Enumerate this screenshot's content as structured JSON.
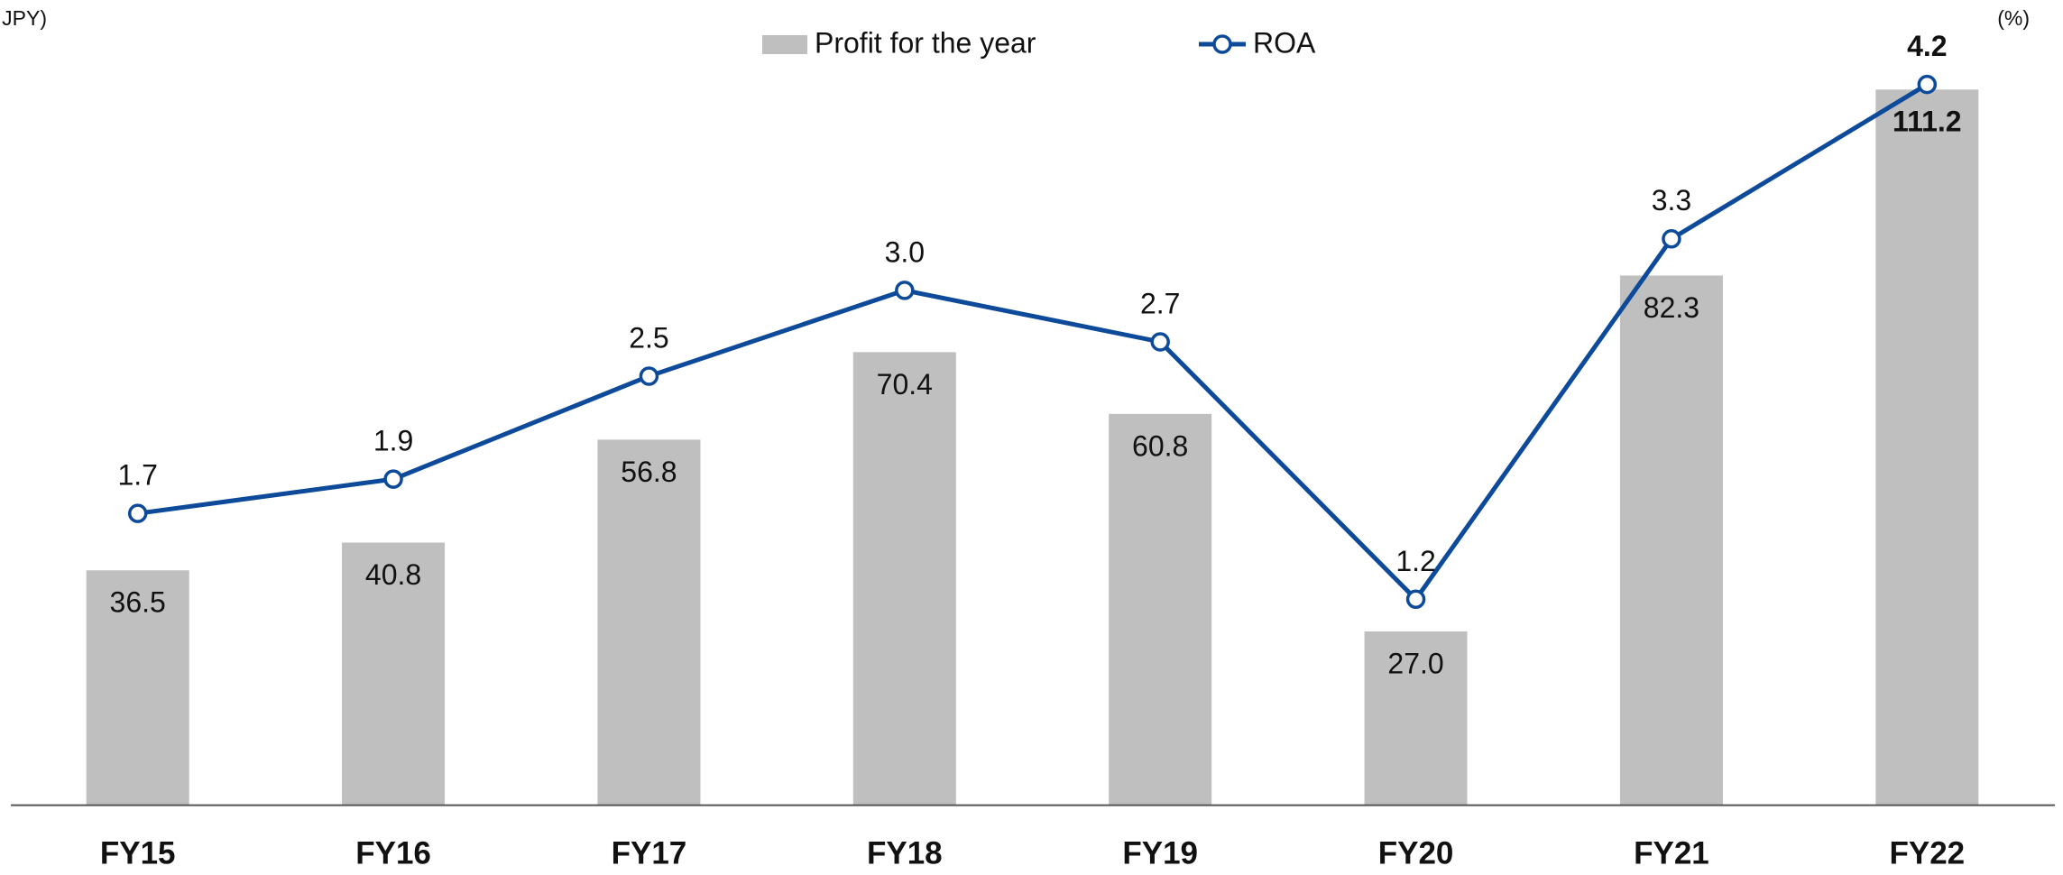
{
  "chart_data": {
    "type": "bar_line",
    "y_label": "(Billion JPY)",
    "y2_label": "(%)",
    "categories": [
      "FY15",
      "FY16",
      "FY17",
      "FY18",
      "FY19",
      "FY20",
      "FY21",
      "FY22"
    ],
    "series": [
      {
        "name": "Profit for the year",
        "type": "bar",
        "color": "#bfbfbf",
        "values": [
          36.5,
          40.8,
          56.8,
          70.4,
          60.8,
          27.0,
          82.3,
          111.2
        ],
        "value_labels": [
          "36.5",
          "40.8",
          "56.8",
          "70.4",
          "60.8",
          "27.0",
          "82.3",
          "111.2"
        ]
      },
      {
        "name": "ROA",
        "type": "line",
        "axis": "y2",
        "color": "#0d4a9a",
        "values": [
          1.7,
          1.9,
          2.5,
          3.0,
          2.7,
          1.2,
          3.3,
          4.2
        ],
        "value_labels": [
          "1.7",
          "1.9",
          "2.5",
          "3.0",
          "2.7",
          "1.2",
          "3.3",
          "4.2"
        ]
      }
    ],
    "ylim": [
      0,
      120
    ],
    "y2lim": [
      0,
      4.5
    ],
    "grid": false
  }
}
